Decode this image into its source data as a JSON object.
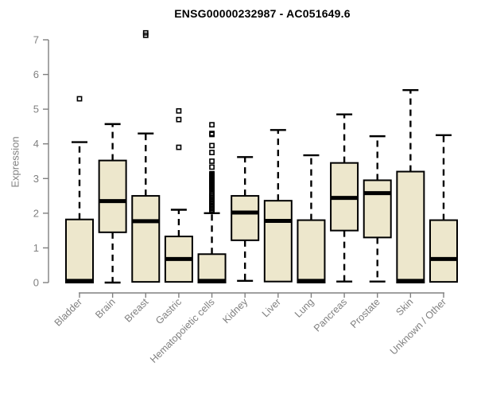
{
  "chart_data": {
    "type": "boxplot",
    "title": "ENSG00000232987 - AC051649.6",
    "ylabel": "Expression",
    "ylim": [
      0,
      7
    ],
    "yticks": [
      0,
      1,
      2,
      3,
      4,
      5,
      6,
      7
    ],
    "grid": false,
    "legend": "none",
    "categories": [
      "Bladder",
      "Brain",
      "Breast",
      "Gastric",
      "Hematopoietic cells",
      "Kidney",
      "Liver",
      "Lung",
      "Pancreas",
      "Prostate",
      "Skin",
      "Unknown / Other"
    ],
    "series": [
      {
        "category": "Bladder",
        "whisker_low": 0,
        "q1": 0,
        "median": 0.05,
        "q3": 1.82,
        "whisker_high": 4.05,
        "outliers": [
          5.3
        ]
      },
      {
        "category": "Brain",
        "whisker_low": 0,
        "q1": 1.45,
        "median": 2.35,
        "q3": 3.52,
        "whisker_high": 4.57,
        "outliers": []
      },
      {
        "category": "Breast",
        "whisker_low": 0.02,
        "q1": 0.02,
        "median": 1.77,
        "q3": 2.5,
        "whisker_high": 4.3,
        "outliers": [
          7.13,
          7.2
        ]
      },
      {
        "category": "Gastric",
        "whisker_low": 0.02,
        "q1": 0.02,
        "median": 0.68,
        "q3": 1.33,
        "whisker_high": 2.1,
        "outliers": [
          3.9,
          4.7,
          4.95
        ]
      },
      {
        "category": "Hematopoietic cells",
        "whisker_low": 0,
        "q1": 0,
        "median": 0.05,
        "q3": 0.82,
        "whisker_high": 2.0,
        "outliers": [
          2.06,
          2.1,
          2.14,
          2.18,
          2.22,
          2.26,
          2.3,
          2.34,
          2.38,
          2.42,
          2.46,
          2.5,
          2.54,
          2.58,
          2.69,
          2.72,
          2.75,
          2.78,
          2.81,
          2.84,
          2.87,
          2.9,
          2.93,
          2.96,
          2.99,
          3.02,
          3.05,
          3.08,
          3.11,
          3.14,
          3.33,
          3.5,
          3.75,
          3.95,
          4.27,
          4.3,
          4.55
        ]
      },
      {
        "category": "Kidney",
        "whisker_low": 0.05,
        "q1": 1.22,
        "median": 2.02,
        "q3": 2.5,
        "whisker_high": 3.62,
        "outliers": []
      },
      {
        "category": "Liver",
        "whisker_low": 0.03,
        "q1": 0.03,
        "median": 1.78,
        "q3": 2.36,
        "whisker_high": 4.4,
        "outliers": []
      },
      {
        "category": "Lung",
        "whisker_low": 0,
        "q1": 0,
        "median": 0.05,
        "q3": 1.8,
        "whisker_high": 3.67,
        "outliers": []
      },
      {
        "category": "Pancreas",
        "whisker_low": 0.03,
        "q1": 1.5,
        "median": 2.44,
        "q3": 3.45,
        "whisker_high": 4.85,
        "outliers": []
      },
      {
        "category": "Prostate",
        "whisker_low": 0.03,
        "q1": 1.3,
        "median": 2.58,
        "q3": 2.95,
        "whisker_high": 4.22,
        "outliers": []
      },
      {
        "category": "Skin",
        "whisker_low": 0,
        "q1": 0,
        "median": 0.05,
        "q3": 3.2,
        "whisker_high": 5.55,
        "outliers": []
      },
      {
        "category": "Unknown / Other",
        "whisker_low": 0.02,
        "q1": 0.02,
        "median": 0.68,
        "q3": 1.8,
        "whisker_high": 4.25,
        "outliers": []
      }
    ],
    "colors": {
      "box_fill": "#EDE7CC",
      "box_stroke": "#000000",
      "median": "#000000",
      "whisker": "#000000",
      "axis": "#808080",
      "tick_label": "#808080",
      "title": "#000000",
      "background": "#FFFFFF"
    }
  }
}
